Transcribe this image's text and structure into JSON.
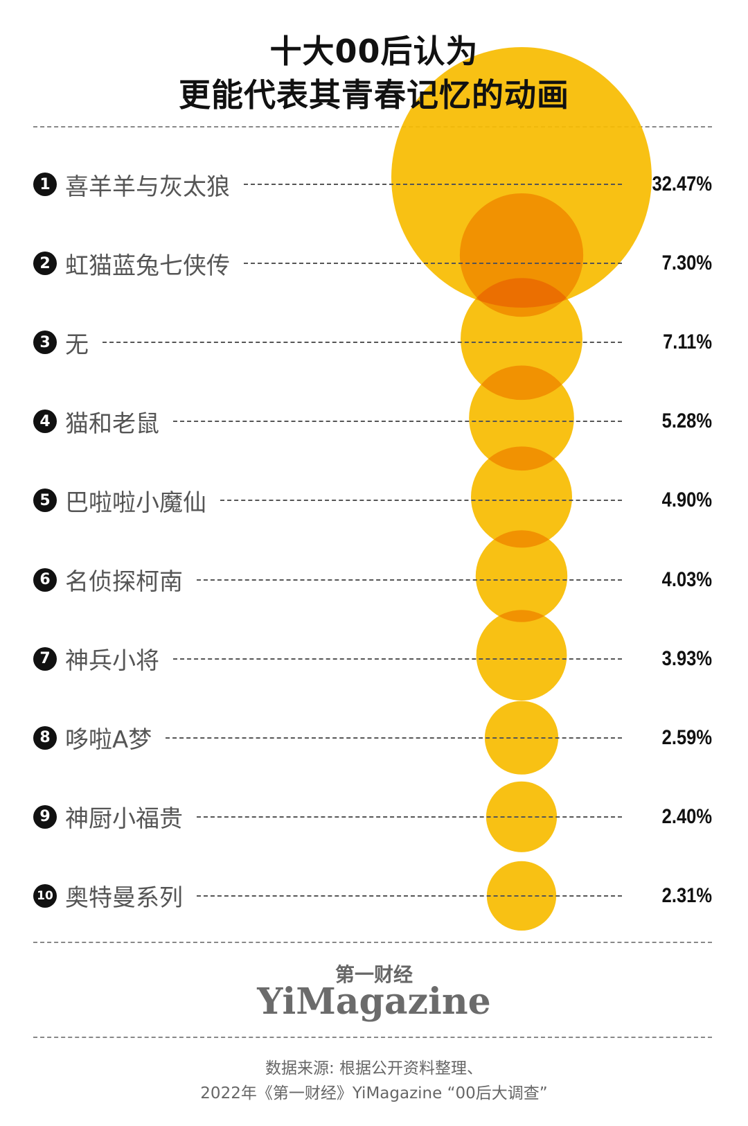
{
  "title": {
    "line1": "十大00后认为",
    "line2": "更能代表其青春记忆的动画"
  },
  "chart_data": {
    "type": "bubble",
    "categories": [
      "喜羊羊与灰太狼",
      "虹猫蓝兔七侠传",
      "无",
      "猫和老鼠",
      "巴啦啦小魔仙",
      "名侦探柯南",
      "神兵小将",
      "哆啦A梦",
      "神厨小福贵",
      "奥特曼系列"
    ],
    "ranks": [
      "1",
      "2",
      "3",
      "4",
      "5",
      "6",
      "7",
      "8",
      "9",
      "10"
    ],
    "values": [
      32.47,
      7.3,
      7.11,
      5.28,
      4.9,
      4.03,
      3.93,
      2.59,
      2.4,
      2.31
    ],
    "labels": [
      "32.47%",
      "7.30%",
      "7.11%",
      "5.28%",
      "4.90%",
      "4.03%",
      "3.93%",
      "2.59%",
      "2.40%",
      "2.31%"
    ],
    "unit": "%",
    "colors": {
      "bubble": "#F7BC00",
      "overlap": "#EE7A00"
    }
  },
  "logo": {
    "cn": "第一财经",
    "en": "YiMagazine"
  },
  "source": {
    "line1": "数据来源: 根据公开资料整理、",
    "line2": "2022年《第一财经》YiMagazine “00后大调查”"
  }
}
